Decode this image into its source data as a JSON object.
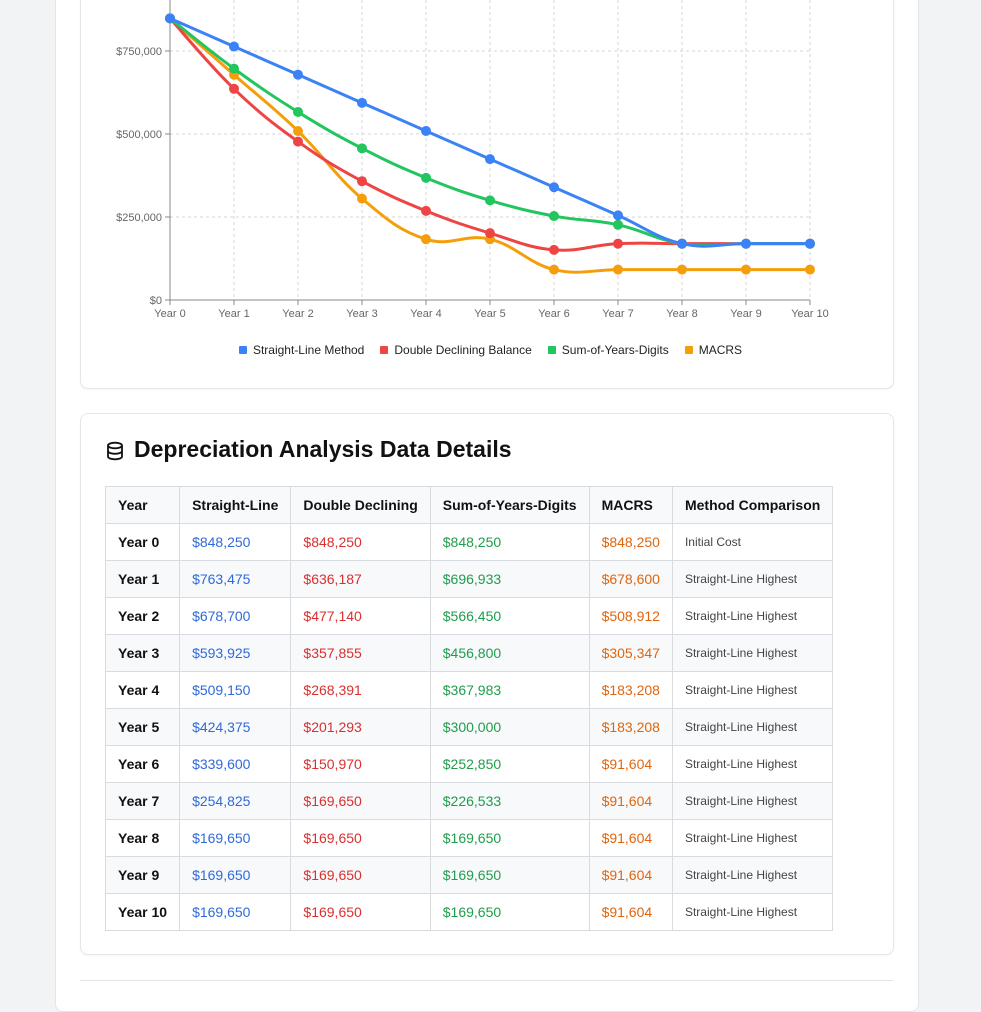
{
  "colors": {
    "straight_line": "#3b82f6",
    "double_declining": "#ef4444",
    "sum_of_years": "#22c55e",
    "macrs": "#f59e0b"
  },
  "chart_data": {
    "type": "line",
    "categories": [
      "Year 0",
      "Year 1",
      "Year 2",
      "Year 3",
      "Year 4",
      "Year 5",
      "Year 6",
      "Year 7",
      "Year 8",
      "Year 9",
      "Year 10"
    ],
    "y_ticks": [
      "$0",
      "$250,000",
      "$500,000",
      "$750,000"
    ],
    "ylim": [
      0,
      850000
    ],
    "grid": true,
    "legend_position": "bottom",
    "series": [
      {
        "name": "Straight-Line Method",
        "color": "#3b82f6",
        "values": [
          848250,
          763475,
          678700,
          593925,
          509150,
          424375,
          339600,
          254825,
          169650,
          169650,
          169650
        ]
      },
      {
        "name": "Double Declining Balance",
        "color": "#ef4444",
        "values": [
          848250,
          636187,
          477140,
          357855,
          268391,
          201293,
          150970,
          169650,
          169650,
          169650,
          169650
        ]
      },
      {
        "name": "Sum-of-Years-Digits",
        "color": "#22c55e",
        "values": [
          848250,
          696933,
          566450,
          456800,
          367983,
          300000,
          252850,
          226533,
          169650,
          169650,
          169650
        ]
      },
      {
        "name": "MACRS",
        "color": "#f59e0b",
        "values": [
          848250,
          678600,
          508912,
          305347,
          183208,
          183208,
          91604,
          91604,
          91604,
          91604,
          91604
        ]
      }
    ]
  },
  "details": {
    "title": "Depreciation Analysis Data Details",
    "icon": "database-icon",
    "columns": [
      "Year",
      "Straight-Line",
      "Double Declining",
      "Sum-of-Years-Digits",
      "MACRS",
      "Method Comparison"
    ],
    "rows": [
      [
        "Year 0",
        "$848,250",
        "$848,250",
        "$848,250",
        "$848,250",
        "Initial Cost"
      ],
      [
        "Year 1",
        "$763,475",
        "$636,187",
        "$696,933",
        "$678,600",
        "Straight-Line Highest"
      ],
      [
        "Year 2",
        "$678,700",
        "$477,140",
        "$566,450",
        "$508,912",
        "Straight-Line Highest"
      ],
      [
        "Year 3",
        "$593,925",
        "$357,855",
        "$456,800",
        "$305,347",
        "Straight-Line Highest"
      ],
      [
        "Year 4",
        "$509,150",
        "$268,391",
        "$367,983",
        "$183,208",
        "Straight-Line Highest"
      ],
      [
        "Year 5",
        "$424,375",
        "$201,293",
        "$300,000",
        "$183,208",
        "Straight-Line Highest"
      ],
      [
        "Year 6",
        "$339,600",
        "$150,970",
        "$252,850",
        "$91,604",
        "Straight-Line Highest"
      ],
      [
        "Year 7",
        "$254,825",
        "$169,650",
        "$226,533",
        "$91,604",
        "Straight-Line Highest"
      ],
      [
        "Year 8",
        "$169,650",
        "$169,650",
        "$169,650",
        "$91,604",
        "Straight-Line Highest"
      ],
      [
        "Year 9",
        "$169,650",
        "$169,650",
        "$169,650",
        "$91,604",
        "Straight-Line Highest"
      ],
      [
        "Year 10",
        "$169,650",
        "$169,650",
        "$169,650",
        "$91,604",
        "Straight-Line Highest"
      ]
    ]
  }
}
